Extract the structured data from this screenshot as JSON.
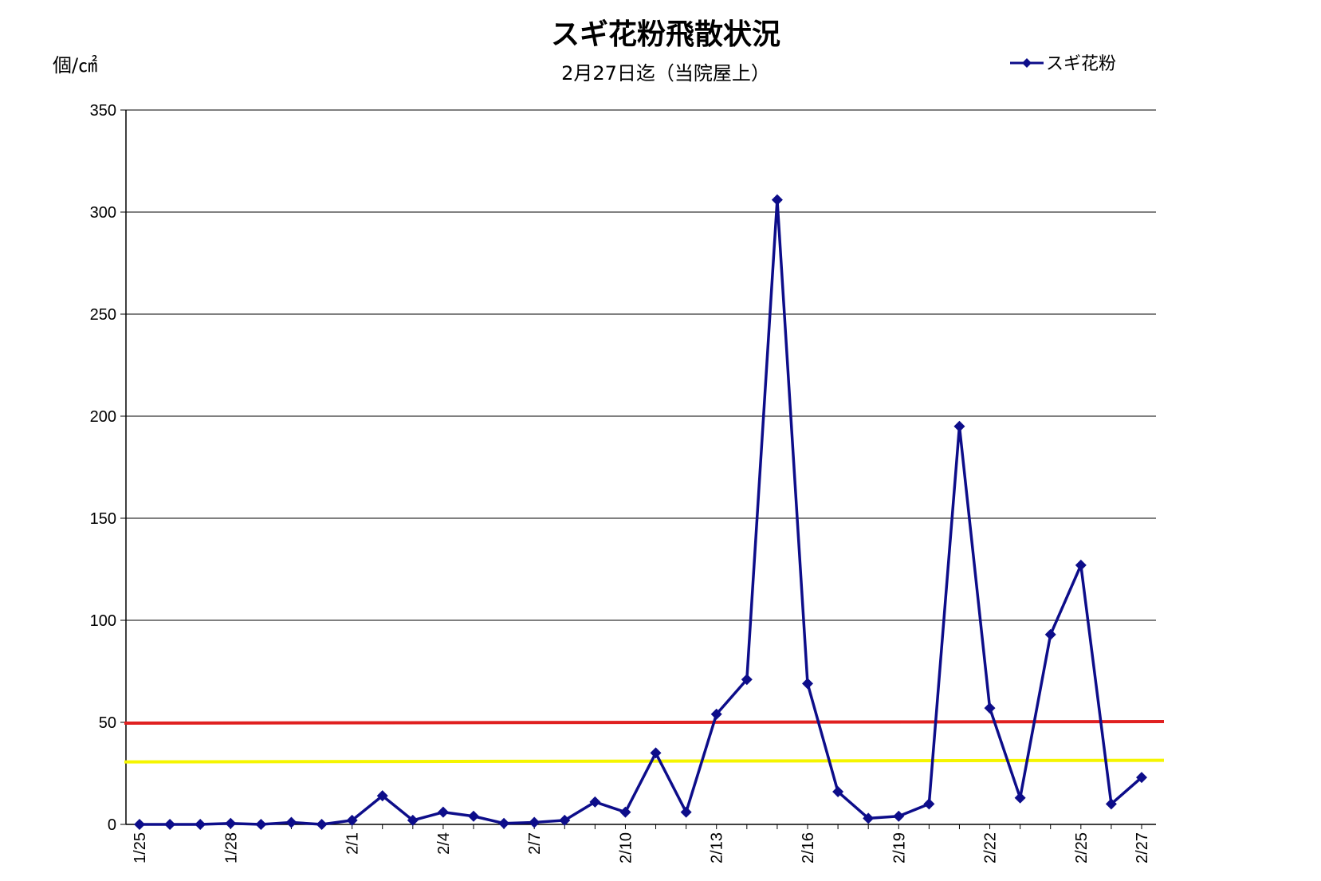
{
  "chart_data": {
    "type": "line",
    "title": "スギ花粉飛散状況",
    "subtitle": "2月27日迄（当院屋上）",
    "ylabel": "個/㎠",
    "xlabel": "",
    "ylim": [
      0,
      350
    ],
    "yticks": [
      0,
      50,
      100,
      150,
      200,
      250,
      300,
      350
    ],
    "grid": true,
    "legend_position": "top-right",
    "categories": [
      "1/25",
      "1/26",
      "1/27",
      "1/28",
      "1/29",
      "1/30",
      "1/31",
      "2/1",
      "2/2",
      "2/3",
      "2/4",
      "2/5",
      "2/6",
      "2/7",
      "2/8",
      "2/9",
      "2/10",
      "2/11",
      "2/12",
      "2/13",
      "2/14",
      "2/15",
      "2/16",
      "2/17",
      "2/18",
      "2/19",
      "2/20",
      "2/21",
      "2/22",
      "2/23",
      "2/24",
      "2/25",
      "2/26",
      "2/27"
    ],
    "tick_labels": [
      "1/25",
      "",
      "",
      "1/28",
      "",
      "",
      "",
      "2/1",
      "",
      "",
      "2/4",
      "",
      "",
      "2/7",
      "",
      "",
      "2/10",
      "",
      "",
      "2/13",
      "",
      "",
      "2/16",
      "",
      "",
      "2/19",
      "",
      "",
      "2/22",
      "",
      "",
      "2/25",
      "",
      "2/27"
    ],
    "series": [
      {
        "name": "スギ花粉",
        "color": "#0d0d8a",
        "marker": "diamond",
        "values": [
          0,
          0,
          0,
          0.5,
          0,
          1,
          0,
          2,
          14,
          2,
          6,
          4,
          0.5,
          1,
          2,
          11,
          6,
          35,
          6,
          54,
          71,
          306,
          69,
          16,
          3,
          4,
          10,
          195,
          57,
          13,
          93,
          127,
          10,
          23
        ]
      }
    ],
    "reference_lines": [
      {
        "value": 50,
        "color": "#e02020"
      },
      {
        "value": 31,
        "color": "#f5f500"
      }
    ]
  }
}
